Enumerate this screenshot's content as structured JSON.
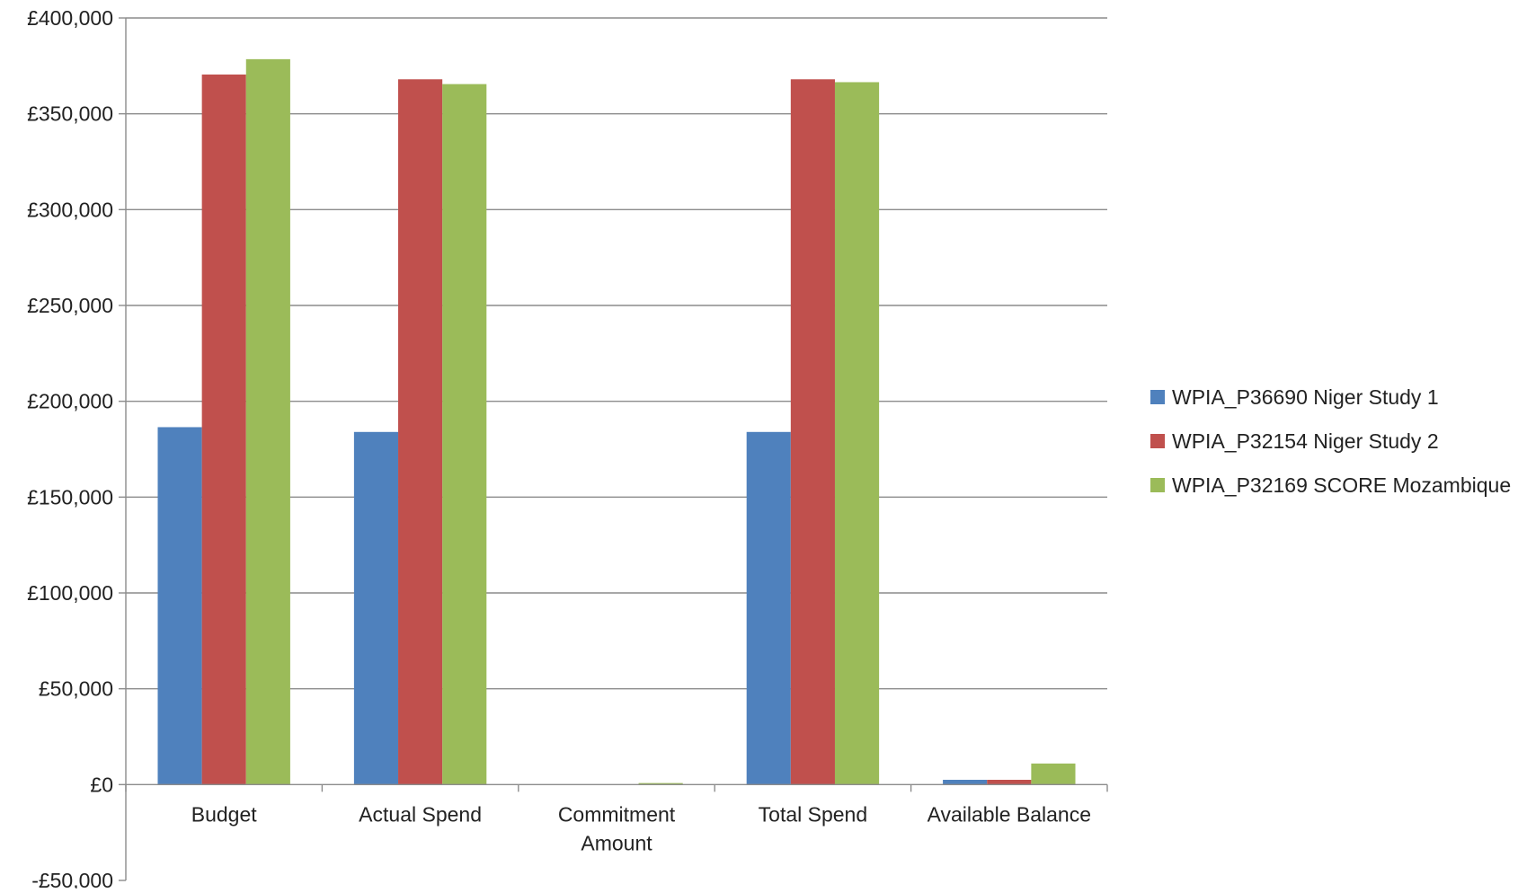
{
  "chart_data": {
    "type": "bar",
    "categories": [
      "Budget",
      "Actual Spend",
      "Commitment Amount",
      "Total Spend",
      "Available Balance"
    ],
    "category_lines": [
      [
        "Budget"
      ],
      [
        "Actual Spend"
      ],
      [
        "Commitment",
        "Amount"
      ],
      [
        "Total Spend"
      ],
      [
        "Available Balance"
      ]
    ],
    "series": [
      {
        "name": "WPIA_P36690 Niger Study 1",
        "color": "#4F81BD",
        "values": [
          186500,
          184000,
          0,
          184000,
          2500
        ]
      },
      {
        "name": "WPIA_P32154 Niger Study 2",
        "color": "#C0504D",
        "values": [
          370500,
          368000,
          0,
          368000,
          2500
        ]
      },
      {
        "name": "WPIA_P32169 SCORE Mozambique",
        "color": "#9BBB59",
        "values": [
          378500,
          365500,
          800,
          366500,
          11000
        ]
      }
    ],
    "ylim": [
      -50000,
      400000
    ],
    "yticks": [
      -50000,
      0,
      50000,
      100000,
      150000,
      200000,
      250000,
      300000,
      350000,
      400000
    ],
    "ytick_labels": [
      "-£50,000",
      "£0",
      "£50,000",
      "£100,000",
      "£150,000",
      "£200,000",
      "£250,000",
      "£300,000",
      "£350,000",
      "£400,000"
    ],
    "grid": true,
    "legend_position": "right"
  }
}
